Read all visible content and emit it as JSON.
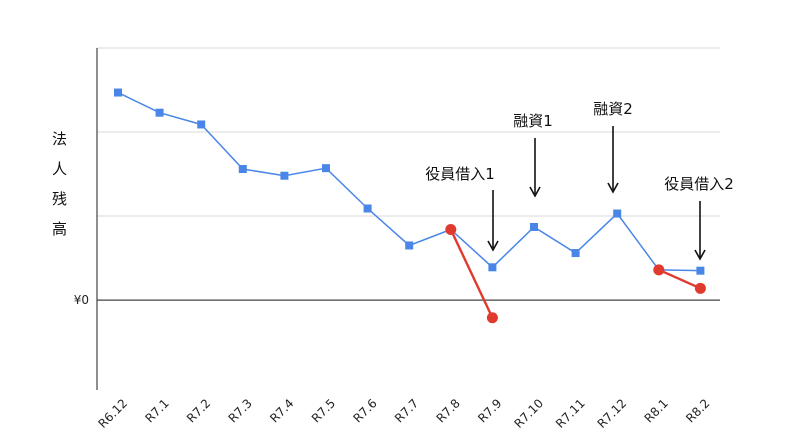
{
  "chart_data": {
    "type": "line",
    "ylabel": "法人残高",
    "categories": [
      "R6.12",
      "R7.1",
      "R7.2",
      "R7.3",
      "R7.4",
      "R7.5",
      "R7.6",
      "R7.7",
      "R7.8",
      "R7.9",
      "R7.10",
      "R7.11",
      "R7.12",
      "R8.1",
      "R8.2"
    ],
    "y_ticks": [
      {
        "value": 0,
        "label": "¥0"
      }
    ],
    "ylim": [
      -1.07,
      3.0
    ],
    "grid": true,
    "series": [
      {
        "color": "#4a86e8",
        "marker": "square",
        "values": [
          2.47,
          2.23,
          2.09,
          1.56,
          1.48,
          1.57,
          1.09,
          0.65,
          0.84,
          0.39,
          0.87,
          0.56,
          1.03,
          0.36,
          0.35
        ]
      }
    ],
    "red_segments": [
      {
        "color": "#e03a2f",
        "marker": "circle",
        "points": [
          {
            "x": "R7.8",
            "y": 0.84
          },
          {
            "x": "R7.9",
            "y": -0.21
          }
        ]
      },
      {
        "color": "#e03a2f",
        "marker": "circle",
        "points": [
          {
            "x": "R8.1",
            "y": 0.36
          },
          {
            "x": "R8.2",
            "y": 0.14
          }
        ]
      }
    ],
    "annotations": [
      {
        "text": "役員借入1",
        "target": "R7.9"
      },
      {
        "text": "融資1",
        "target": "R7.10"
      },
      {
        "text": "融資2",
        "target": "R7.12"
      },
      {
        "text": "役員借入2",
        "target": "R8.2"
      }
    ]
  }
}
